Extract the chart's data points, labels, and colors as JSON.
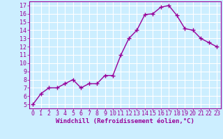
{
  "x": [
    0,
    1,
    2,
    3,
    4,
    5,
    6,
    7,
    8,
    9,
    10,
    11,
    12,
    13,
    14,
    15,
    16,
    17,
    18,
    19,
    20,
    21,
    22,
    23
  ],
  "y": [
    5.0,
    6.3,
    7.0,
    7.0,
    7.5,
    8.0,
    7.0,
    7.5,
    7.5,
    8.5,
    8.5,
    11.0,
    13.0,
    14.0,
    15.9,
    16.0,
    16.8,
    17.0,
    15.8,
    14.2,
    14.0,
    13.0,
    12.5,
    12.0
  ],
  "line_color": "#990099",
  "marker": "+",
  "marker_size": 4,
  "linewidth": 1.0,
  "xlabel": "Windchill (Refroidissement éolien,°C)",
  "xlabel_fontsize": 6.5,
  "background_color": "#cceeff",
  "grid_color": "#ffffff",
  "ylim": [
    4.5,
    17.5
  ],
  "xlim": [
    -0.5,
    23.5
  ],
  "yticks": [
    5,
    6,
    7,
    8,
    9,
    10,
    11,
    12,
    13,
    14,
    15,
    16,
    17
  ],
  "xticks": [
    0,
    1,
    2,
    3,
    4,
    5,
    6,
    7,
    8,
    9,
    10,
    11,
    12,
    13,
    14,
    15,
    16,
    17,
    18,
    19,
    20,
    21,
    22,
    23
  ],
  "tick_fontsize": 6.0,
  "spine_color": "#990099",
  "markeredgewidth": 1.0
}
